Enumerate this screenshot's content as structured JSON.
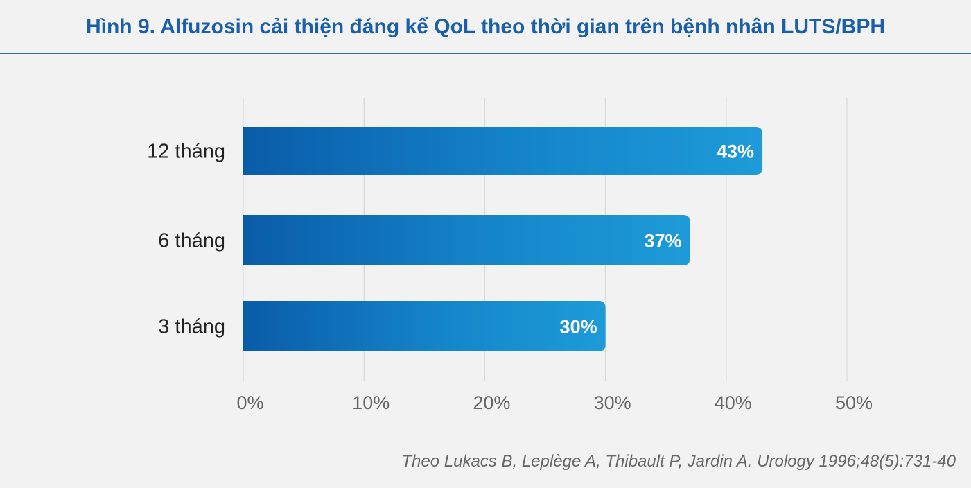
{
  "title": "Hình 9. Alfuzosin cải thiện đáng kể QoL theo thời gian trên bệnh nhân LUTS/BPH",
  "source": "Theo Lukacs B, Leplège A, Thibault P, Jardin A. Urology 1996;48(5):731-40",
  "colors": {
    "title": "#1a5fa8",
    "bar_start": "#0a5ca8",
    "bar_end": "#1e9bd8",
    "grid": "#d9d9d9",
    "axis_text": "#666666",
    "category_text": "#222222",
    "value_label": "#ffffff",
    "background": "#f2f2f2"
  },
  "chart_data": {
    "type": "bar",
    "orientation": "horizontal",
    "categories": [
      "12 tháng",
      "6 tháng",
      "3 tháng"
    ],
    "values": [
      43,
      37,
      30
    ],
    "value_labels": [
      "43%",
      "37%",
      "30%"
    ],
    "xlim": [
      0,
      50
    ],
    "xticks": [
      0,
      10,
      20,
      30,
      40,
      50
    ],
    "xtick_labels": [
      "0%",
      "10%",
      "20%",
      "30%",
      "40%",
      "50%"
    ],
    "grid": true,
    "legend": "none"
  }
}
